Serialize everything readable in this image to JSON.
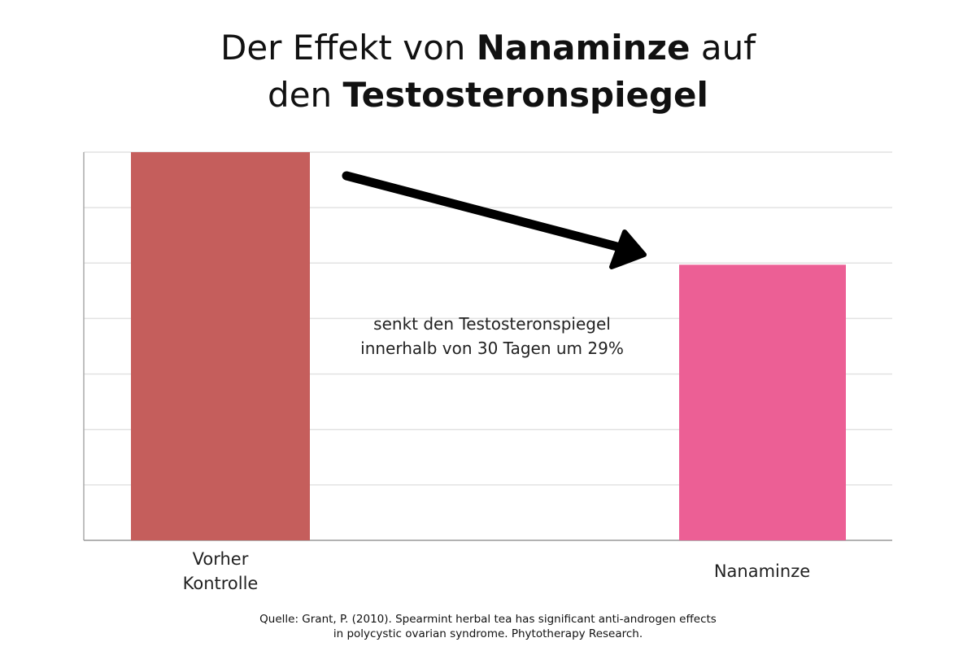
{
  "chart_data": {
    "type": "bar",
    "title_parts": [
      "Der Effekt von ",
      "Nanaminze",
      " auf",
      "den ",
      "Testosteronspiegel"
    ],
    "categories": [
      "Vorher Kontrolle",
      "Nanaminze"
    ],
    "category_lines": [
      [
        "Vorher",
        "Kontrolle"
      ],
      [
        "Nanaminze"
      ]
    ],
    "values": [
      100,
      71
    ],
    "colors": [
      "#c55e5c",
      "#ec5f95"
    ],
    "ylim": [
      0,
      100
    ],
    "gridlines": 7,
    "grid": true,
    "xlabel": "",
    "ylabel": "",
    "annotation": [
      "senkt den Testosteronspiegel",
      "innerhalb von 30 Tagen um 29%"
    ],
    "source": [
      "Quelle: Grant, P. (2010). Spearmint herbal tea has significant anti-androgen effects",
      "in polycystic ovarian syndrome. Phytotherapy Research."
    ]
  }
}
